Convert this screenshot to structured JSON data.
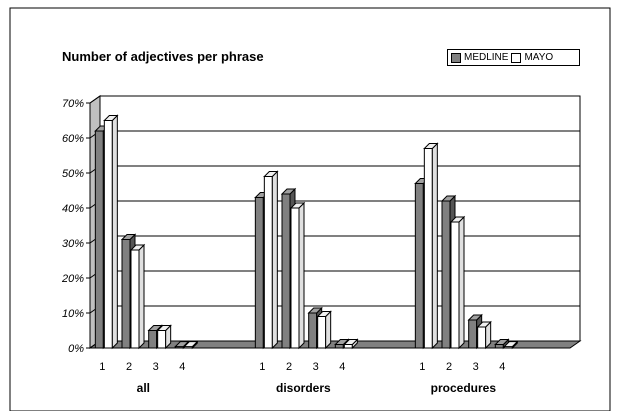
{
  "chart_data": {
    "type": "bar",
    "title": "Number of adjectives per phrase",
    "xlabel": "",
    "ylabel": "",
    "ylim": [
      0,
      70
    ],
    "yticks": [
      "0%",
      "10%",
      "20%",
      "30%",
      "40%",
      "50%",
      "60%",
      "70%"
    ],
    "grid": true,
    "legend_placement": "top-right",
    "groups": [
      "all",
      "disorders",
      "procedures"
    ],
    "categories": [
      "1",
      "2",
      "3",
      "4"
    ],
    "series": [
      {
        "name": "MEDLINE",
        "color": "#808080",
        "values": [
          [
            62,
            31,
            5,
            0.4
          ],
          [
            43,
            44,
            10,
            1
          ],
          [
            47,
            42,
            8,
            1
          ]
        ]
      },
      {
        "name": "MAYO",
        "color": "#ffffff",
        "values": [
          [
            65,
            28,
            5,
            0.4
          ],
          [
            49,
            40,
            9,
            1
          ],
          [
            57,
            36,
            6,
            0.4
          ]
        ]
      }
    ]
  }
}
